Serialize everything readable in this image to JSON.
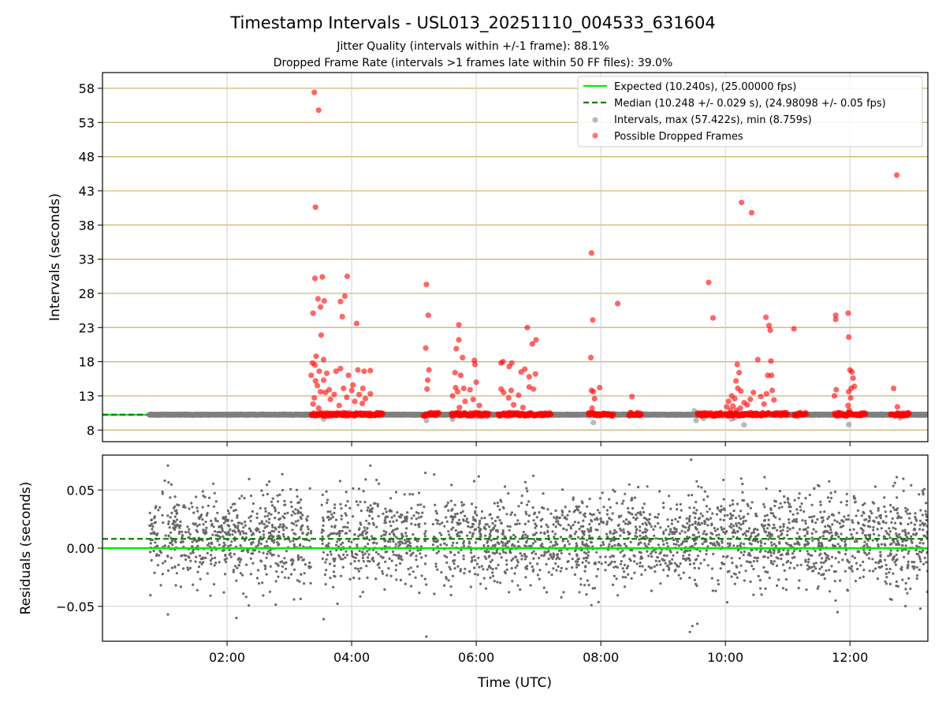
{
  "chart_data": {
    "type": "scatter",
    "title": "Timestamp Intervals - USL013_20251110_004533_631604",
    "subtitle_lines": [
      "Jitter Quality (intervals within +/-1 frame): 88.1%",
      "Dropped Frame Rate (intervals >1 frames late within 50 FF files): 39.0%"
    ],
    "xlabel": "Time (UTC)",
    "x_unit": "hours UTC",
    "xlim": [
      0.0,
      13.25
    ],
    "xticks": [
      2,
      4,
      6,
      8,
      10,
      12
    ],
    "xtick_labels": [
      "02:00",
      "04:00",
      "06:00",
      "08:00",
      "10:00",
      "12:00"
    ],
    "top_panel": {
      "ylabel": "Intervals (seconds)",
      "ylim": [
        6.3,
        60.3
      ],
      "yticks": [
        8,
        13,
        18,
        23,
        28,
        33,
        38,
        43,
        48,
        53,
        58
      ],
      "ytick_labels": [
        "8",
        "13",
        "18",
        "23",
        "28",
        "33",
        "38",
        "43",
        "48",
        "53",
        "58"
      ],
      "expected_interval": 10.24,
      "median_interval": 10.248,
      "legend": [
        "Expected (10.240s), (25.00000 fps)",
        "Median (10.248 +/- 0.029 s), (24.98098 +/- 0.05 fps)",
        "Intervals, max (57.422s), min (8.759s)",
        "Possible Dropped Frames"
      ],
      "colors": {
        "expected": "#00ee00",
        "median": "#007f00",
        "intervals": "#808080",
        "dropped": "#ff0000",
        "hgrid": "#c8b266"
      },
      "normal_range": [
        0.75,
        13.25
      ],
      "dropped_dense_ranges": [
        [
          3.35,
          3.5
        ],
        [
          3.52,
          4.5
        ],
        [
          5.15,
          5.4
        ],
        [
          5.6,
          6.2
        ],
        [
          6.35,
          7.2
        ],
        [
          7.8,
          8.2
        ],
        [
          8.45,
          8.65
        ],
        [
          9.55,
          9.95
        ],
        [
          10.0,
          10.5
        ],
        [
          10.5,
          10.7
        ],
        [
          10.75,
          11.0
        ],
        [
          11.1,
          11.3
        ],
        [
          11.75,
          12.25
        ],
        [
          12.65,
          12.95
        ]
      ],
      "dropped_frames": [
        [
          3.4,
          57.4
        ],
        [
          3.47,
          54.8
        ],
        [
          3.42,
          40.6
        ],
        [
          3.41,
          30.2
        ],
        [
          3.53,
          30.4
        ],
        [
          3.93,
          30.5
        ],
        [
          3.46,
          27.2
        ],
        [
          3.5,
          26.0
        ],
        [
          3.56,
          26.9
        ],
        [
          3.38,
          25.1
        ],
        [
          3.89,
          27.6
        ],
        [
          3.82,
          26.8
        ],
        [
          3.85,
          24.6
        ],
        [
          4.08,
          23.6
        ],
        [
          3.51,
          21.9
        ],
        [
          3.43,
          18.8
        ],
        [
          3.55,
          18.3
        ],
        [
          3.37,
          17.8
        ],
        [
          3.41,
          17.5
        ],
        [
          3.48,
          16.6
        ],
        [
          3.6,
          16.3
        ],
        [
          3.75,
          16.6
        ],
        [
          3.82,
          17.0
        ],
        [
          3.95,
          16.0
        ],
        [
          4.1,
          16.8
        ],
        [
          4.2,
          16.6
        ],
        [
          4.3,
          16.7
        ],
        [
          3.35,
          16.0
        ],
        [
          3.42,
          15.2
        ],
        [
          3.45,
          14.5
        ],
        [
          3.5,
          13.6
        ],
        [
          3.58,
          13.5
        ],
        [
          3.66,
          12.5
        ],
        [
          3.72,
          13.2
        ],
        [
          3.87,
          14.1
        ],
        [
          3.92,
          12.8
        ],
        [
          4.0,
          13.8
        ],
        [
          4.05,
          12.2
        ],
        [
          4.12,
          13.2
        ],
        [
          4.17,
          11.9
        ],
        [
          4.22,
          12.6
        ],
        [
          4.3,
          13.3
        ],
        [
          3.38,
          11.8
        ],
        [
          3.47,
          11.2
        ],
        [
          3.4,
          12.7
        ],
        [
          3.8,
          11.6
        ],
        [
          4.02,
          14.6
        ],
        [
          4.18,
          14.1
        ],
        [
          3.64,
          13.9
        ],
        [
          3.55,
          15.3
        ],
        [
          5.2,
          29.3
        ],
        [
          5.23,
          24.8
        ],
        [
          5.19,
          20.0
        ],
        [
          5.24,
          16.8
        ],
        [
          5.22,
          15.3
        ],
        [
          5.21,
          14.0
        ],
        [
          5.72,
          23.4
        ],
        [
          5.68,
          19.9
        ],
        [
          5.72,
          21.2
        ],
        [
          5.78,
          18.6
        ],
        [
          5.66,
          16.4
        ],
        [
          5.75,
          16.0
        ],
        [
          5.8,
          14.1
        ],
        [
          5.62,
          13.0
        ],
        [
          5.7,
          13.6
        ],
        [
          5.82,
          12.2
        ],
        [
          5.9,
          13.9
        ],
        [
          5.97,
          18.2
        ],
        [
          5.98,
          17.6
        ],
        [
          6.0,
          15.0
        ],
        [
          5.95,
          12.5
        ],
        [
          6.05,
          11.6
        ],
        [
          5.67,
          14.2
        ],
        [
          5.73,
          11.3
        ],
        [
          6.4,
          17.8
        ],
        [
          6.43,
          18.0
        ],
        [
          6.53,
          17.3
        ],
        [
          6.57,
          17.8
        ],
        [
          6.72,
          16.5
        ],
        [
          6.78,
          16.9
        ],
        [
          6.85,
          15.8
        ],
        [
          6.95,
          16.2
        ],
        [
          6.82,
          23.0
        ],
        [
          6.9,
          20.6
        ],
        [
          6.96,
          21.2
        ],
        [
          6.4,
          14.0
        ],
        [
          6.44,
          13.5
        ],
        [
          6.56,
          13.8
        ],
        [
          6.68,
          13.1
        ],
        [
          6.85,
          14.3
        ],
        [
          6.92,
          14.0
        ],
        [
          6.6,
          11.7
        ],
        [
          6.75,
          11.3
        ],
        [
          6.52,
          12.7
        ],
        [
          7.85,
          33.9
        ],
        [
          7.87,
          24.1
        ],
        [
          7.84,
          18.6
        ],
        [
          7.85,
          13.8
        ],
        [
          7.88,
          13.6
        ],
        [
          7.98,
          14.2
        ],
        [
          7.9,
          12.6
        ],
        [
          7.86,
          11.2
        ],
        [
          8.27,
          26.5
        ],
        [
          8.5,
          12.9
        ],
        [
          9.73,
          29.6
        ],
        [
          9.8,
          24.4
        ],
        [
          10.26,
          41.3
        ],
        [
          10.42,
          39.8
        ],
        [
          10.19,
          17.6
        ],
        [
          10.22,
          16.4
        ],
        [
          10.17,
          15.2
        ],
        [
          10.2,
          14.1
        ],
        [
          10.1,
          13.0
        ],
        [
          10.15,
          12.6
        ],
        [
          10.25,
          13.7
        ],
        [
          10.3,
          12.0
        ],
        [
          10.05,
          12.2
        ],
        [
          10.12,
          11.5
        ],
        [
          10.24,
          11.2
        ],
        [
          10.35,
          11.7
        ],
        [
          10.4,
          12.5
        ],
        [
          10.45,
          13.5
        ],
        [
          10.52,
          18.3
        ],
        [
          10.57,
          12.9
        ],
        [
          10.65,
          24.5
        ],
        [
          10.7,
          23.3
        ],
        [
          10.72,
          22.6
        ],
        [
          10.73,
          18.1
        ],
        [
          10.68,
          16.0
        ],
        [
          10.74,
          16.0
        ],
        [
          10.66,
          13.3
        ],
        [
          10.75,
          13.8
        ],
        [
          10.78,
          12.4
        ],
        [
          10.62,
          11.8
        ],
        [
          11.1,
          22.8
        ],
        [
          10.08,
          10.9
        ],
        [
          10.02,
          11.4
        ],
        [
          10.18,
          10.9
        ],
        [
          11.77,
          24.8
        ],
        [
          11.77,
          24.2
        ],
        [
          11.97,
          25.1
        ],
        [
          11.98,
          21.6
        ],
        [
          12.0,
          16.8
        ],
        [
          12.03,
          16.5
        ],
        [
          12.05,
          15.6
        ],
        [
          12.02,
          14.1
        ],
        [
          11.98,
          13.6
        ],
        [
          12.07,
          14.4
        ],
        [
          12.01,
          12.7
        ],
        [
          11.78,
          13.9
        ],
        [
          11.75,
          13.0
        ],
        [
          11.97,
          11.6
        ],
        [
          11.99,
          10.9
        ],
        [
          12.75,
          45.3
        ],
        [
          12.7,
          14.1
        ],
        [
          12.76,
          11.4
        ]
      ],
      "gray_outliers": [
        [
          3.55,
          9.6
        ],
        [
          5.2,
          9.4
        ],
        [
          5.62,
          9.6
        ],
        [
          7.88,
          9.1
        ],
        [
          9.5,
          10.8
        ],
        [
          9.53,
          9.4
        ],
        [
          9.65,
          9.7
        ],
        [
          10.1,
          9.6
        ],
        [
          10.15,
          9.8
        ],
        [
          10.3,
          8.76
        ],
        [
          11.98,
          8.8
        ],
        [
          12.8,
          9.8
        ]
      ]
    },
    "bottom_panel": {
      "ylabel": "Residuals (seconds)",
      "ylim": [
        -0.08,
        0.08
      ],
      "yticks": [
        -0.05,
        0.0,
        0.05
      ],
      "ytick_labels": [
        "−0.05",
        "0.00",
        "0.05"
      ],
      "expected_line": 0.0,
      "median_line": 0.008,
      "residual_sd": 0.025,
      "point_color": "#696969",
      "gap_ranges": [
        [
          3.35,
          3.52
        ],
        [
          5.2,
          5.3
        ]
      ],
      "notable_points": [
        [
          9.45,
          0.076
        ],
        [
          1.05,
          0.071
        ],
        [
          4.3,
          0.071
        ],
        [
          5.2,
          -0.076
        ],
        [
          9.43,
          -0.072
        ],
        [
          9.47,
          -0.067
        ],
        [
          9.55,
          -0.065
        ],
        [
          2.15,
          -0.06
        ],
        [
          1.05,
          -0.057
        ],
        [
          3.55,
          -0.061
        ],
        [
          11.8,
          -0.055
        ],
        [
          13.13,
          -0.052
        ],
        [
          7.85,
          -0.049
        ],
        [
          12.75,
          0.061
        ],
        [
          1.0,
          0.058
        ]
      ]
    }
  }
}
